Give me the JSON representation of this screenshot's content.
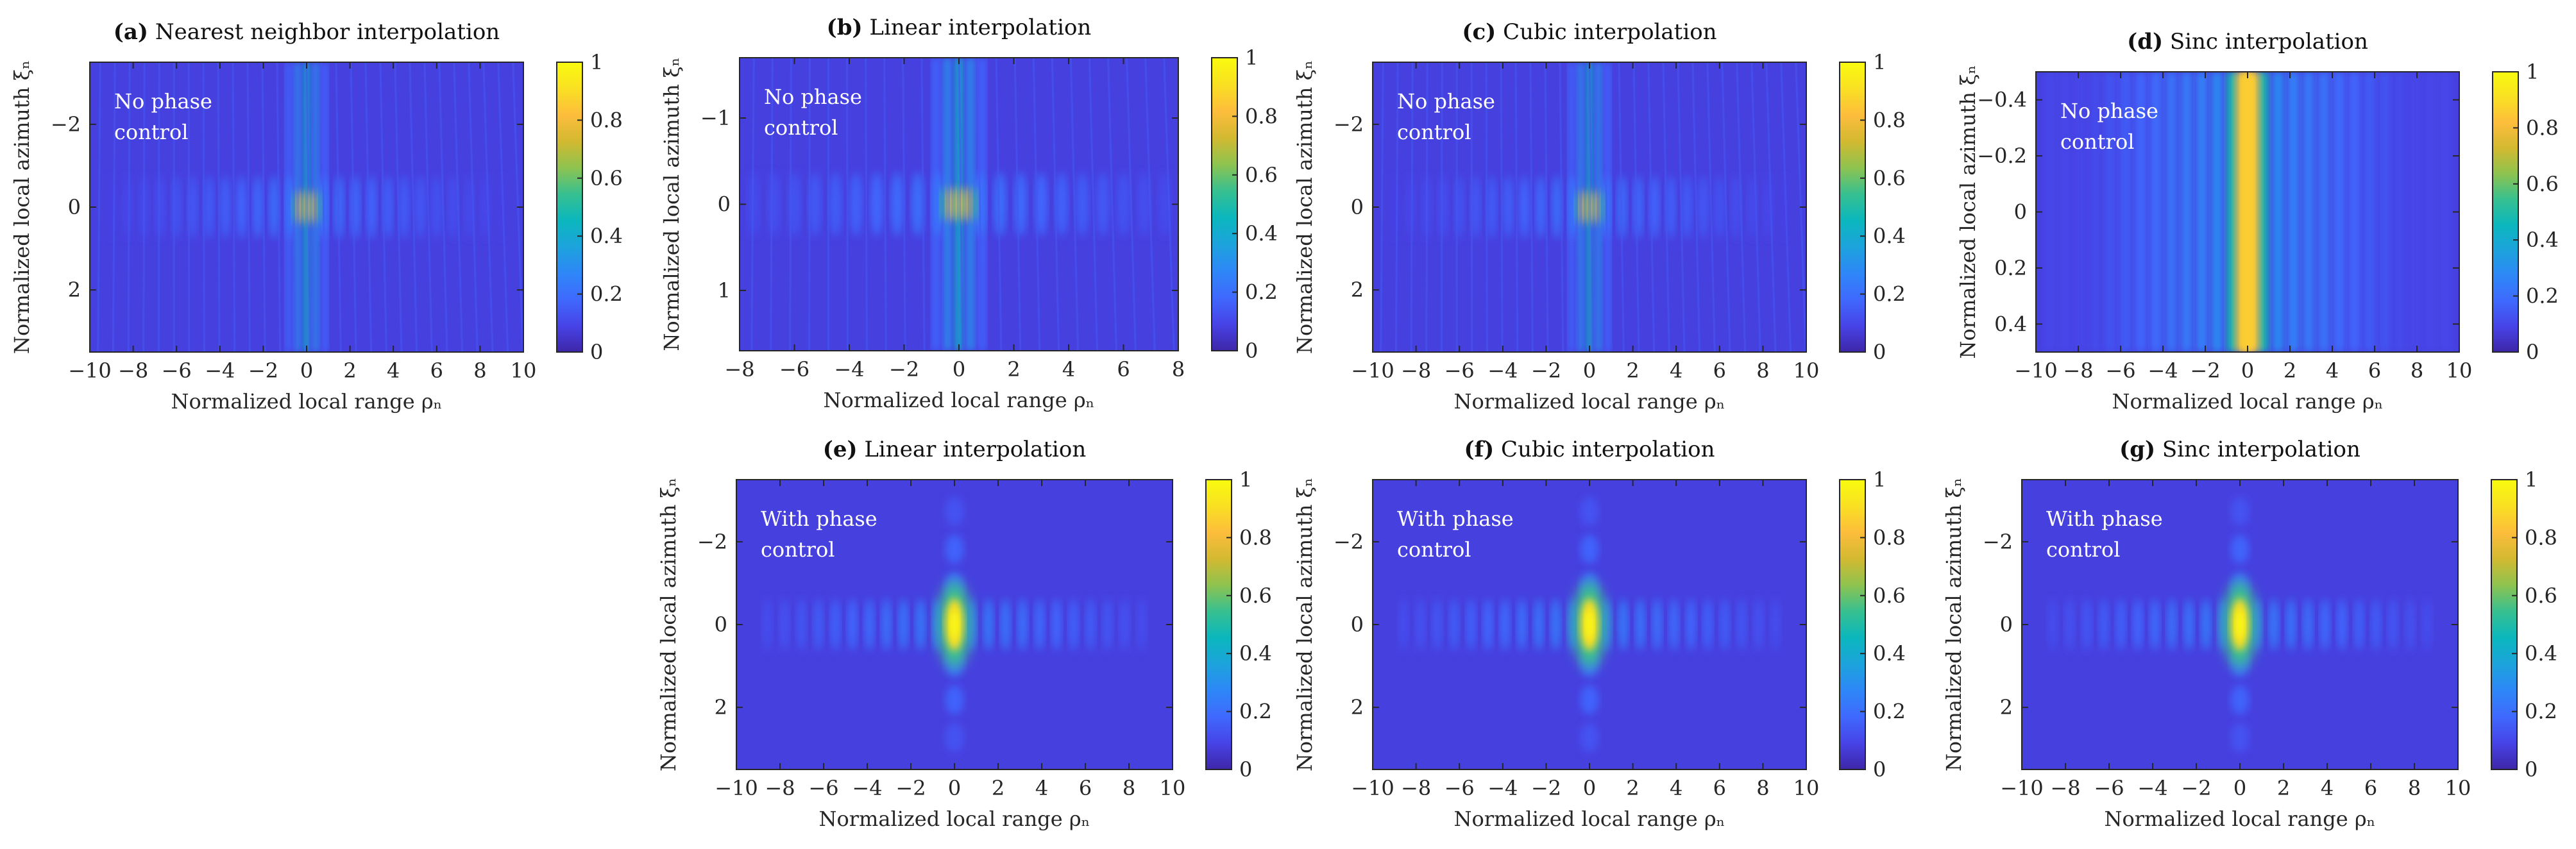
{
  "figure": {
    "colorbar": {
      "colormap": [
        "#3e26a8",
        "#4743e7",
        "#3f69fe",
        "#2e87f7",
        "#1ca3dc",
        "#0bb7bd",
        "#37c090",
        "#8ec34f",
        "#d3b930",
        "#fdbd3c",
        "#f9e022",
        "#f9fb0e"
      ],
      "ticks": [
        "0",
        "0.2",
        "0.4",
        "0.6",
        "0.8",
        "1"
      ],
      "range": [
        0,
        1
      ]
    },
    "common": {
      "xlabel": "Normalized local range ρₙ",
      "ylabel": "Normalized local azimuth ξₙ"
    }
  },
  "chart_data": [
    {
      "id": "a",
      "type": "heatmap",
      "title_label": "(a)",
      "title_text": "Nearest neighbor interpolation",
      "annotation": [
        "No phase",
        "control"
      ],
      "xlim": [
        -10,
        10
      ],
      "ylim": [
        -3.5,
        3.5
      ],
      "y_reversed": true,
      "xticks": [
        -10,
        -8,
        -6,
        -4,
        -2,
        0,
        2,
        4,
        6,
        8,
        10
      ],
      "xtick_labels": [
        "−10",
        "−8",
        "−6",
        "−4",
        "−2",
        "0",
        "2",
        "4",
        "6",
        "8",
        "10"
      ],
      "yticks": [
        -2,
        0,
        2
      ],
      "ytick_labels": [
        "−2",
        "0",
        "2"
      ],
      "pattern": "no-phase-control",
      "peak": 1.0,
      "colorbar": true
    },
    {
      "id": "b",
      "type": "heatmap",
      "title_label": "(b)",
      "title_text": "Linear interpolation",
      "annotation": [
        "No phase",
        "control"
      ],
      "xlim": [
        -8,
        8
      ],
      "ylim": [
        -1.7,
        1.7
      ],
      "y_reversed": true,
      "xticks": [
        -8,
        -6,
        -4,
        -2,
        0,
        2,
        4,
        6,
        8
      ],
      "xtick_labels": [
        "−8",
        "−6",
        "−4",
        "−2",
        "0",
        "2",
        "4",
        "6",
        "8"
      ],
      "yticks": [
        -1,
        0,
        1
      ],
      "ytick_labels": [
        "−1",
        "0",
        "1"
      ],
      "pattern": "no-phase-control",
      "peak": 1.0,
      "colorbar": true
    },
    {
      "id": "c",
      "type": "heatmap",
      "title_label": "(c)",
      "title_text": "Cubic interpolation",
      "annotation": [
        "No phase",
        "control"
      ],
      "xlim": [
        -10,
        10
      ],
      "ylim": [
        -3.5,
        3.5
      ],
      "y_reversed": true,
      "xticks": [
        -10,
        -8,
        -6,
        -4,
        -2,
        0,
        2,
        4,
        6,
        8,
        10
      ],
      "xtick_labels": [
        "−10",
        "−8",
        "−6",
        "−4",
        "−2",
        "0",
        "2",
        "4",
        "6",
        "8",
        "10"
      ],
      "yticks": [
        -2,
        0,
        2
      ],
      "ytick_labels": [
        "−2",
        "0",
        "2"
      ],
      "pattern": "no-phase-control",
      "peak": 1.0,
      "colorbar": true
    },
    {
      "id": "d",
      "type": "heatmap",
      "title_label": "(d)",
      "title_text": "Sinc interpolation",
      "annotation": [
        "No phase",
        "control"
      ],
      "xlim": [
        -10,
        10
      ],
      "ylim": [
        -0.5,
        0.5
      ],
      "y_reversed": true,
      "xticks": [
        -10,
        -8,
        -6,
        -4,
        -2,
        0,
        2,
        4,
        6,
        8,
        10
      ],
      "xtick_labels": [
        "−10",
        "−8",
        "−6",
        "−4",
        "−2",
        "0",
        "2",
        "4",
        "6",
        "8",
        "10"
      ],
      "yticks": [
        -0.4,
        -0.2,
        0,
        0.2,
        0.4
      ],
      "ytick_labels": [
        "−0.4",
        "−0.2",
        "0",
        "0.2",
        "0.4"
      ],
      "pattern": "range-stripes",
      "peak": 0.9,
      "colorbar": true
    },
    {
      "id": "e",
      "type": "heatmap",
      "title_label": "(e)",
      "title_text": "Linear interpolation",
      "annotation": [
        "With phase",
        "control"
      ],
      "xlim": [
        -10,
        10
      ],
      "ylim": [
        -3.5,
        3.5
      ],
      "y_reversed": true,
      "xticks": [
        -10,
        -8,
        -6,
        -4,
        -2,
        0,
        2,
        4,
        6,
        8,
        10
      ],
      "xtick_labels": [
        "−10",
        "−8",
        "−6",
        "−4",
        "−2",
        "0",
        "2",
        "4",
        "6",
        "8",
        "10"
      ],
      "yticks": [
        -2,
        0,
        2
      ],
      "ytick_labels": [
        "−2",
        "0",
        "2"
      ],
      "pattern": "with-phase-control",
      "peak": 1.0,
      "colorbar": true
    },
    {
      "id": "f",
      "type": "heatmap",
      "title_label": "(f)",
      "title_text": "Cubic interpolation",
      "annotation": [
        "With phase",
        "control"
      ],
      "xlim": [
        -10,
        10
      ],
      "ylim": [
        -3.5,
        3.5
      ],
      "y_reversed": true,
      "xticks": [
        -10,
        -8,
        -6,
        -4,
        -2,
        0,
        2,
        4,
        6,
        8,
        10
      ],
      "xtick_labels": [
        "−10",
        "−8",
        "−6",
        "−4",
        "−2",
        "0",
        "2",
        "4",
        "6",
        "8",
        "10"
      ],
      "yticks": [
        -2,
        0,
        2
      ],
      "ytick_labels": [
        "−2",
        "0",
        "2"
      ],
      "pattern": "with-phase-control",
      "peak": 1.0,
      "colorbar": true
    },
    {
      "id": "g",
      "type": "heatmap",
      "title_label": "(g)",
      "title_text": "Sinc interpolation",
      "annotation": [
        "With phase",
        "control"
      ],
      "xlim": [
        -10,
        10
      ],
      "ylim": [
        -3.5,
        3.5
      ],
      "y_reversed": true,
      "xticks": [
        -10,
        -8,
        -6,
        -4,
        -2,
        0,
        2,
        4,
        6,
        8,
        10
      ],
      "xtick_labels": [
        "−10",
        "−8",
        "−6",
        "−4",
        "−2",
        "0",
        "2",
        "4",
        "6",
        "8",
        "10"
      ],
      "yticks": [
        -2,
        0,
        2
      ],
      "ytick_labels": [
        "−2",
        "0",
        "2"
      ],
      "pattern": "with-phase-control",
      "peak": 1.0,
      "colorbar": true
    }
  ]
}
